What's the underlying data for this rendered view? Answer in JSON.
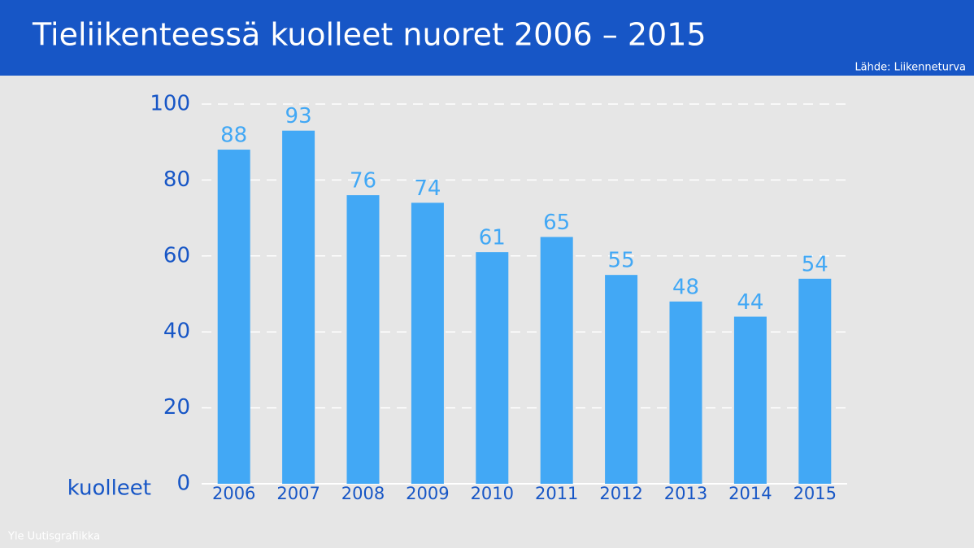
{
  "chart_data": {
    "type": "bar",
    "title": "Tieliikenteessä kuolleet nuoret  2006 – 2015",
    "source": "Lähde: Liikenneturva",
    "credit": "Yle Uutisgrafiikka",
    "ylabel": "kuolleet",
    "categories": [
      "2006",
      "2007",
      "2008",
      "2009",
      "2010",
      "2011",
      "2012",
      "2013",
      "2014",
      "2015"
    ],
    "values": [
      88,
      93,
      76,
      74,
      61,
      65,
      55,
      48,
      44,
      54
    ],
    "color": "#42a8f5",
    "ylim": [
      0,
      100
    ],
    "yticks": [
      0,
      20,
      40,
      60,
      80,
      100
    ],
    "grid": true
  }
}
